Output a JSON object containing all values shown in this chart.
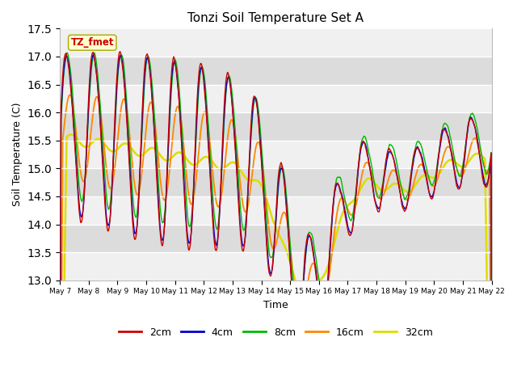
{
  "title": "Tonzi Soil Temperature Set A",
  "xlabel": "Time",
  "ylabel": "Soil Temperature (C)",
  "ylim": [
    13.0,
    17.5
  ],
  "yticks": [
    13.0,
    13.5,
    14.0,
    14.5,
    15.0,
    15.5,
    16.0,
    16.5,
    17.0,
    17.5
  ],
  "x_tick_labels": [
    "May 7",
    "May 8",
    "May 9",
    "May 10",
    "May 11",
    "May 12",
    "May 13",
    "May 14",
    "May 15",
    "May 16",
    "May 17",
    "May 18",
    "May 19",
    "May 20",
    "May 21",
    "May 22"
  ],
  "colors": {
    "2cm": "#cc0000",
    "4cm": "#0000cc",
    "8cm": "#00bb00",
    "16cm": "#ff8800",
    "32cm": "#dddd00"
  },
  "label_box_color": "#ffffcc",
  "label_box_edge": "#aaa800",
  "label_text": "TZ_fmet",
  "label_text_color": "#cc0000",
  "bg_light": "#f0f0f0",
  "bg_dark": "#dcdcdc",
  "legend_labels": [
    "2cm",
    "4cm",
    "8cm",
    "16cm",
    "32cm"
  ]
}
